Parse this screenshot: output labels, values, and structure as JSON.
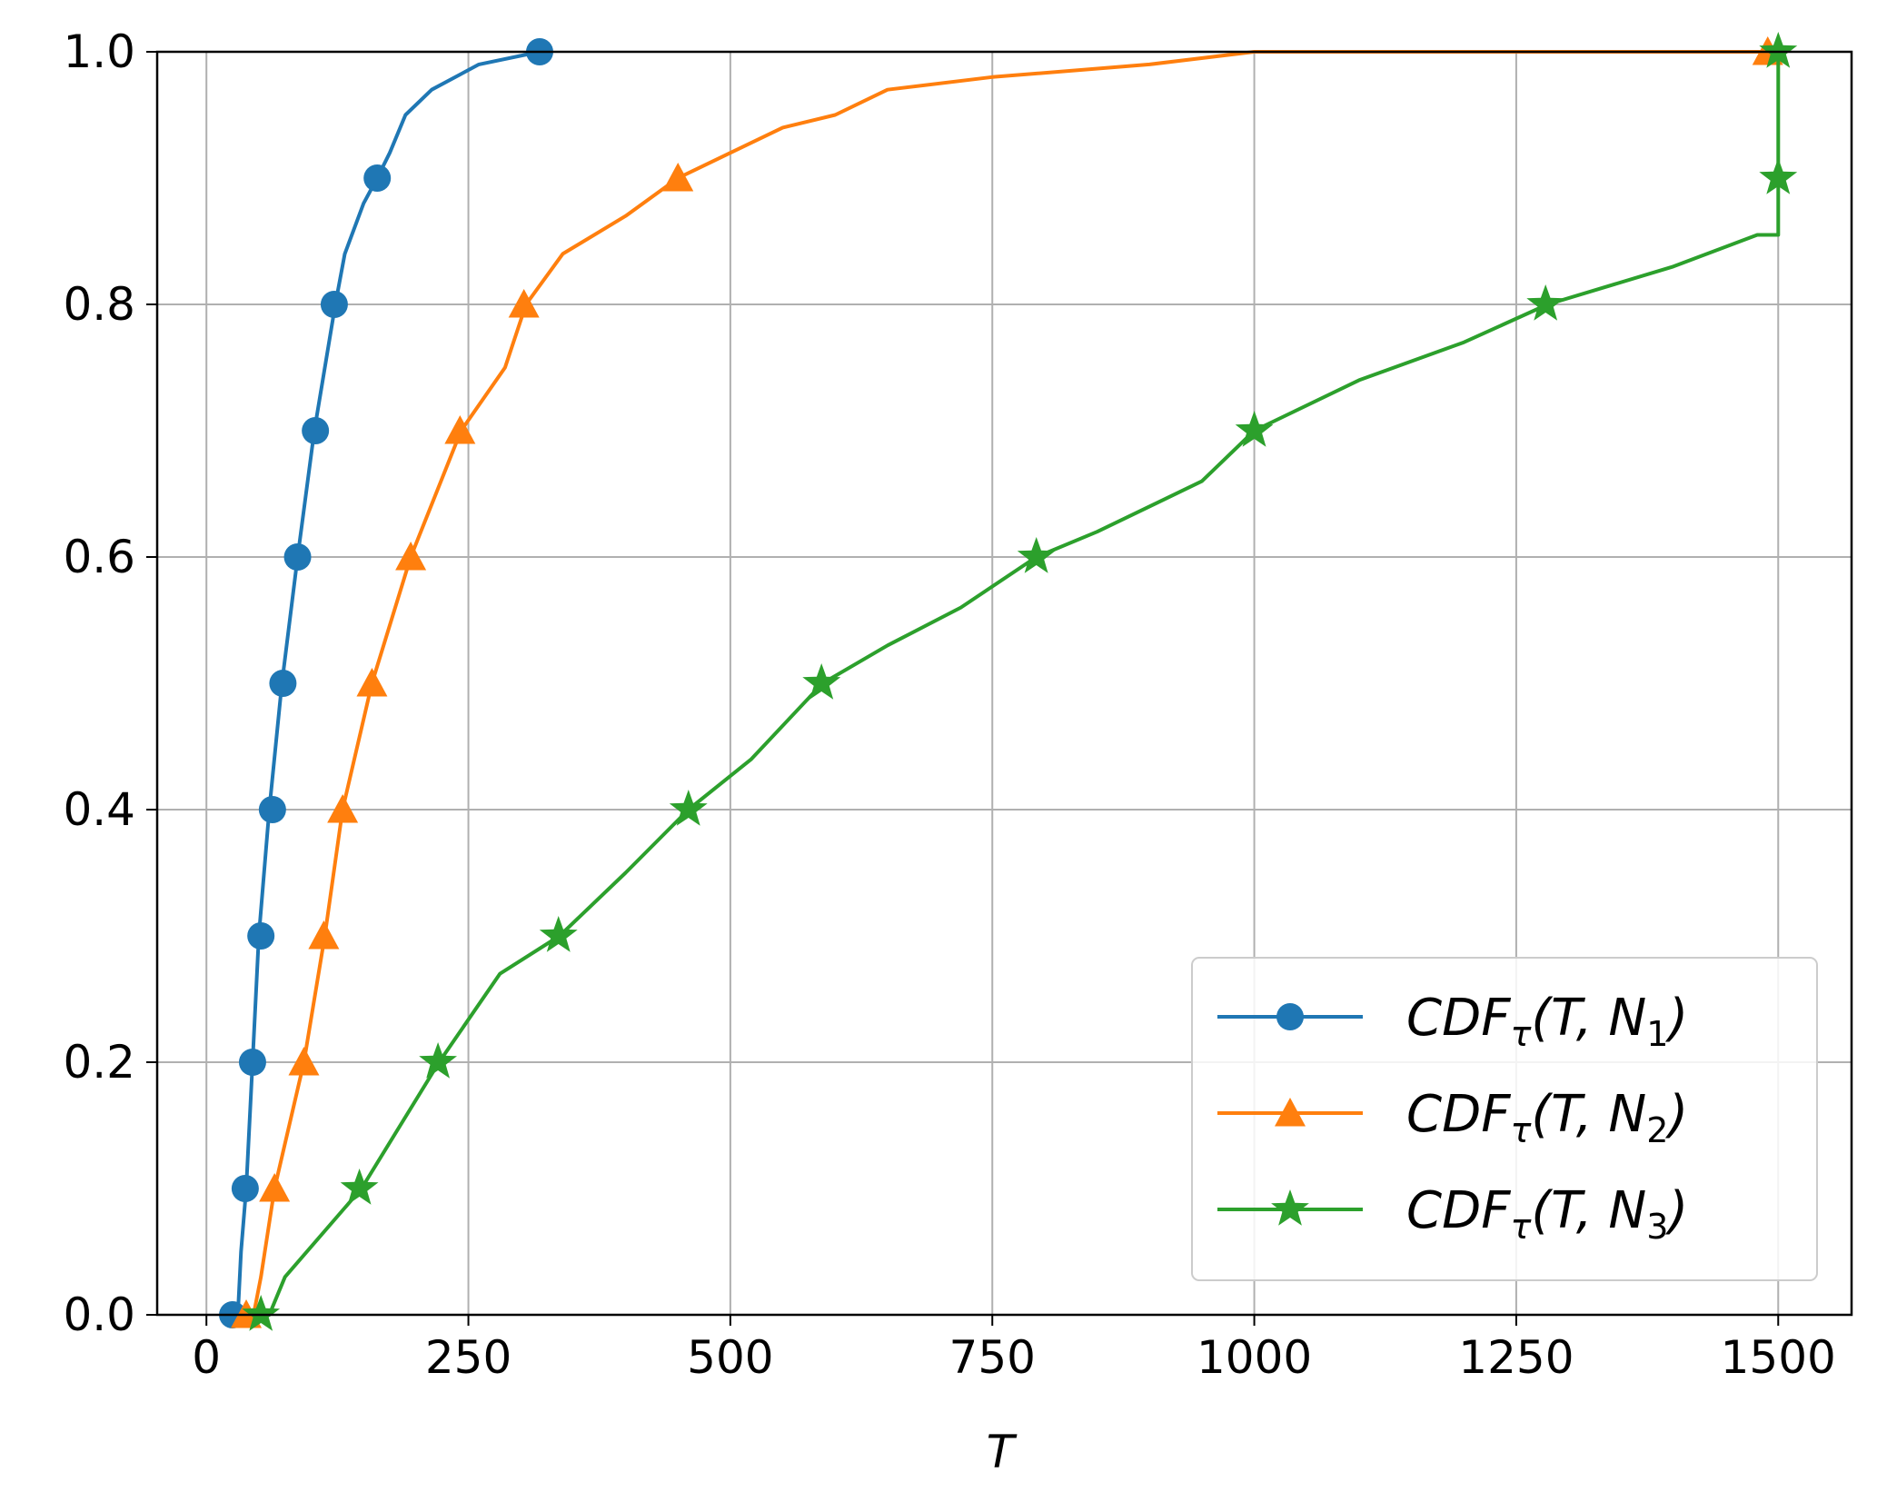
{
  "chart_data": {
    "type": "line",
    "xlabel": "T",
    "ylabel": "",
    "xlim": [
      -47,
      1570
    ],
    "ylim": [
      0.0,
      1.0
    ],
    "xticks": [
      0,
      250,
      500,
      750,
      1000,
      1250,
      1500
    ],
    "xtick_labels": [
      "0",
      "250",
      "500",
      "750",
      "1000",
      "1250",
      "1500"
    ],
    "yticks": [
      0.0,
      0.2,
      0.4,
      0.6,
      0.8,
      1.0
    ],
    "ytick_labels": [
      "0.0",
      "0.2",
      "0.4",
      "0.6",
      "0.8",
      "1.0"
    ],
    "grid": true,
    "legend_position": "bottom-right",
    "series": [
      {
        "legend": {
          "base": "CDF",
          "sub1": "τ",
          "args": "(T, N",
          "sub2": "1",
          "close": ")"
        },
        "color": "#1f77b4",
        "marker": "circle",
        "points": [
          [
            25,
            0.0
          ],
          [
            30,
            0.0
          ],
          [
            33,
            0.05
          ],
          [
            38,
            0.1
          ],
          [
            44,
            0.2
          ],
          [
            50,
            0.3
          ],
          [
            60,
            0.4
          ],
          [
            72,
            0.5
          ],
          [
            87,
            0.6
          ],
          [
            103,
            0.7
          ],
          [
            123,
            0.8
          ],
          [
            132,
            0.84
          ],
          [
            150,
            0.88
          ],
          [
            163,
            0.9
          ],
          [
            175,
            0.92
          ],
          [
            190,
            0.95
          ],
          [
            215,
            0.97
          ],
          [
            260,
            0.99
          ],
          [
            318,
            1.0
          ]
        ],
        "markers": [
          [
            25,
            0.0
          ],
          [
            37,
            0.1
          ],
          [
            44,
            0.2
          ],
          [
            52,
            0.3
          ],
          [
            63,
            0.4
          ],
          [
            73,
            0.5
          ],
          [
            87,
            0.6
          ],
          [
            104,
            0.7
          ],
          [
            122,
            0.8
          ],
          [
            163,
            0.9
          ],
          [
            318,
            1.0
          ]
        ]
      },
      {
        "legend": {
          "base": "CDF",
          "sub1": "τ",
          "args": "(T, N",
          "sub2": "2",
          "close": ")"
        },
        "color": "#ff7f0e",
        "marker": "triangle",
        "points": [
          [
            35,
            0.0
          ],
          [
            45,
            0.0
          ],
          [
            52,
            0.03
          ],
          [
            65,
            0.1
          ],
          [
            93,
            0.2
          ],
          [
            113,
            0.3
          ],
          [
            130,
            0.4
          ],
          [
            158,
            0.5
          ],
          [
            195,
            0.6
          ],
          [
            243,
            0.7
          ],
          [
            285,
            0.75
          ],
          [
            305,
            0.8
          ],
          [
            340,
            0.84
          ],
          [
            400,
            0.87
          ],
          [
            450,
            0.9
          ],
          [
            500,
            0.92
          ],
          [
            550,
            0.94
          ],
          [
            600,
            0.95
          ],
          [
            650,
            0.97
          ],
          [
            750,
            0.98
          ],
          [
            900,
            0.99
          ],
          [
            1000,
            1.0
          ],
          [
            1500,
            1.0
          ]
        ],
        "markers": [
          [
            38,
            0.0
          ],
          [
            65,
            0.1
          ],
          [
            93,
            0.2
          ],
          [
            112,
            0.3
          ],
          [
            130,
            0.4
          ],
          [
            158,
            0.5
          ],
          [
            195,
            0.6
          ],
          [
            242,
            0.7
          ],
          [
            303,
            0.8
          ],
          [
            450,
            0.9
          ],
          [
            1490,
            1.0
          ]
        ]
      },
      {
        "legend": {
          "base": "CDF",
          "sub1": "τ",
          "args": "(T, N",
          "sub2": "3",
          "close": ")"
        },
        "color": "#2ca02c",
        "marker": "star",
        "points": [
          [
            45,
            0.0
          ],
          [
            60,
            0.0
          ],
          [
            75,
            0.03
          ],
          [
            148,
            0.1
          ],
          [
            222,
            0.2
          ],
          [
            280,
            0.27
          ],
          [
            337,
            0.3
          ],
          [
            400,
            0.35
          ],
          [
            460,
            0.4
          ],
          [
            520,
            0.44
          ],
          [
            588,
            0.5
          ],
          [
            650,
            0.53
          ],
          [
            720,
            0.56
          ],
          [
            792,
            0.6
          ],
          [
            850,
            0.62
          ],
          [
            950,
            0.66
          ],
          [
            1000,
            0.7
          ],
          [
            1100,
            0.74
          ],
          [
            1200,
            0.77
          ],
          [
            1280,
            0.8
          ],
          [
            1400,
            0.83
          ],
          [
            1480,
            0.855
          ],
          [
            1500,
            0.855
          ],
          [
            1500,
            0.9
          ],
          [
            1500,
            1.0
          ]
        ],
        "markers": [
          [
            52,
            0.0
          ],
          [
            146,
            0.1
          ],
          [
            221,
            0.2
          ],
          [
            336,
            0.3
          ],
          [
            460,
            0.4
          ],
          [
            587,
            0.5
          ],
          [
            792,
            0.6
          ],
          [
            1000,
            0.7
          ],
          [
            1278,
            0.8
          ],
          [
            1500,
            0.9
          ],
          [
            1500,
            1.0
          ]
        ]
      }
    ]
  }
}
